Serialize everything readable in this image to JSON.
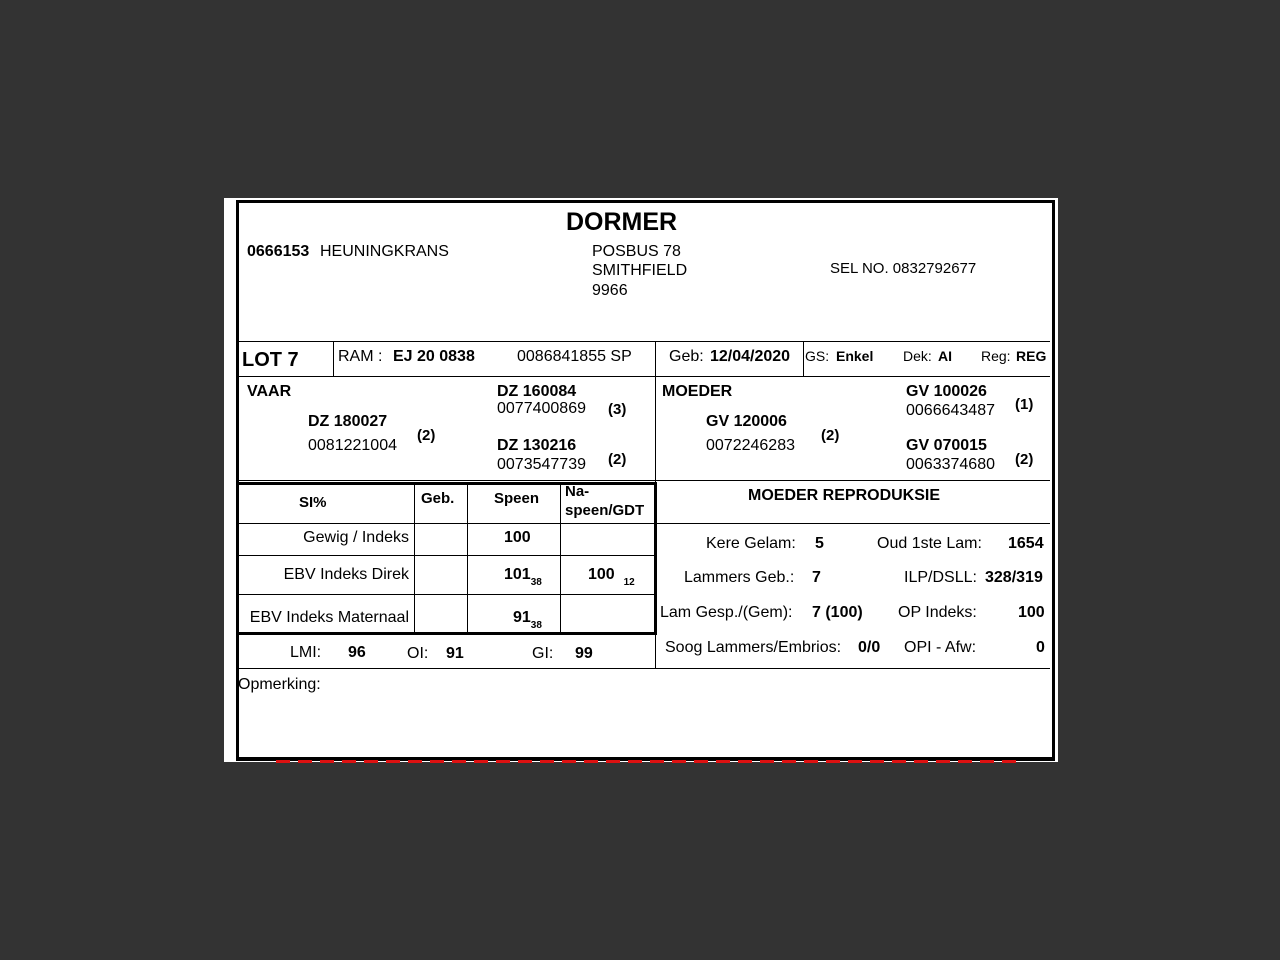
{
  "header": {
    "breed": "DORMER",
    "breeder_code": "0666153",
    "farm": "HEUNINGKRANS",
    "address": [
      "POSBUS 78",
      "SMITHFIELD",
      "9966"
    ],
    "phone": "SEL NO. 0832792677"
  },
  "lot": {
    "lot": "LOT 7",
    "ram_label": "RAM :",
    "ram_id": "EJ 20 0838",
    "reg_no": "0086841855  SP",
    "geb_label": "Geb:",
    "geb": "12/04/2020",
    "gs_label": "GS:",
    "gs": "Enkel",
    "dek_label": "Dek:",
    "dek": "AI",
    "reg_label": "Reg:",
    "reg": "REG"
  },
  "pedigree": {
    "vaar_label": "VAAR",
    "vaar_id": "DZ  180027",
    "vaar_no": "0081221004",
    "vaar_n": "(2)",
    "vv_id": "DZ  160084",
    "vv_no": "0077400869",
    "vv_n": "(3)",
    "vm_id": "DZ  130216",
    "vm_no": "0073547739",
    "vm_n": "(2)",
    "moeder_label": "MOEDER",
    "moeder_id": "GV  120006",
    "moeder_no": "0072246283",
    "moeder_n": "(2)",
    "mv_id": "GV  100026",
    "mv_no": "0066643487",
    "mv_n": "(1)",
    "mm_id": "GV  070015",
    "mm_no": "0063374680",
    "mm_n": "(2)"
  },
  "si_table": {
    "headers": [
      "SI%",
      "Geb.",
      "Speen",
      "Na-\nspeen/GDT"
    ],
    "rows": [
      {
        "label": "Gewig / Indeks",
        "geb": "",
        "speen": "100",
        "speen_sub": "",
        "na": "",
        "na_sub": ""
      },
      {
        "label": "EBV Indeks Direk",
        "geb": "",
        "speen": "101",
        "speen_sub": "38",
        "na": "100",
        "na_sub": "12"
      },
      {
        "label": "EBV Indeks Maternaal",
        "geb": "",
        "speen": "91",
        "speen_sub": "38",
        "na": "",
        "na_sub": ""
      }
    ]
  },
  "indices": {
    "lmi_label": "LMI:",
    "lmi": "96",
    "oi_label": "OI:",
    "oi": "91",
    "gi_label": "GI:",
    "gi": "99"
  },
  "repro": {
    "title": "MOEDER REPRODUKSIE",
    "kere_label": "Kere Gelam:",
    "kere": "5",
    "oud_label": "Oud 1ste Lam:",
    "oud": "1654",
    "lam_label": "Lammers Geb.:",
    "lam": "7",
    "ilp_label": "ILP/DSLL:",
    "ilp": "328/319",
    "gesp_label": "Lam Gesp./(Gem):",
    "gesp": "7 (100)",
    "op_label": "OP Indeks:",
    "op": "100",
    "soog_label": "Soog Lammers/Embrios:",
    "soog": "0/0",
    "opi_label": "OPI - Afw:",
    "opi": "0"
  },
  "remark_label": "Opmerking:"
}
